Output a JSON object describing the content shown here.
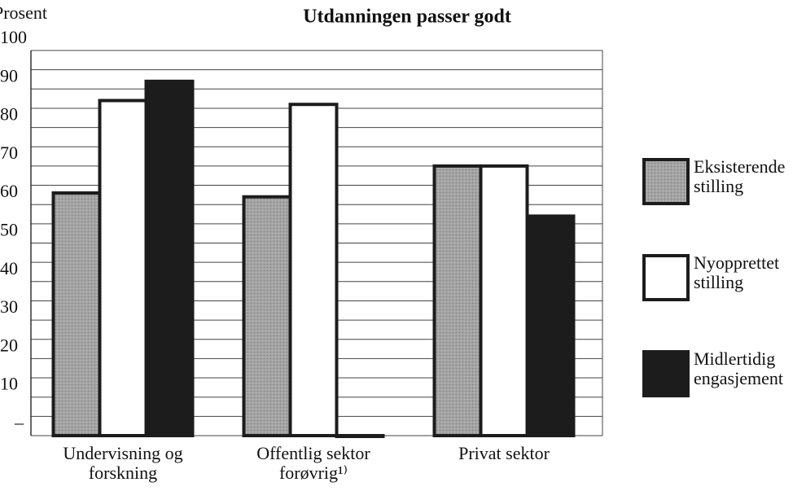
{
  "chart_data": {
    "type": "bar",
    "title": "Utdanningen passer godt",
    "y_label": "Prosent",
    "categories": [
      "Undervisning og forskning",
      "Offentlig sektor forøvrig¹⁾",
      "Privat sektor"
    ],
    "series": [
      {
        "name": "Eksisterende stilling",
        "color": "#a3a3a3",
        "values": [
          63,
          62,
          70
        ]
      },
      {
        "name": "Nyopprettet stilling",
        "color": "#ffffff",
        "values": [
          87,
          86,
          70
        ]
      },
      {
        "name": "Midlertidig engasjement",
        "color": "#1c1c1c",
        "values": [
          92,
          0,
          57
        ]
      }
    ],
    "ylim": [
      0,
      100
    ],
    "yticks": [
      {
        "value": 0,
        "label": "–"
      },
      10,
      20,
      30,
      40,
      50,
      60,
      70,
      80,
      90,
      100
    ],
    "minor_yticks": [
      5,
      15,
      25,
      35,
      45,
      55,
      65,
      75,
      85,
      95
    ],
    "grid": true,
    "legend": "right"
  }
}
